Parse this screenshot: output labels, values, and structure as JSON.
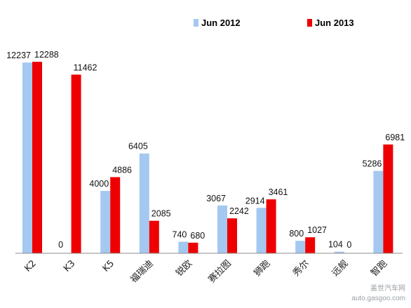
{
  "chart_data": {
    "type": "bar",
    "title": "",
    "xlabel": "",
    "ylabel": "",
    "ylim": [
      0,
      14000
    ],
    "grid": false,
    "legend_position": "top",
    "categories": [
      "K2",
      "K3",
      "K5",
      "福瑞迪",
      "锐欧",
      "赛拉图",
      "狮跑",
      "秀尔",
      "远舰",
      "智跑"
    ],
    "series": [
      {
        "name": "Jun  2012",
        "color": "#a4c8f0",
        "values": [
          12237,
          0,
          4000,
          6405,
          740,
          3067,
          2914,
          800,
          104,
          5286
        ]
      },
      {
        "name": "Jun  2013",
        "color": "#ee0000",
        "values": [
          12288,
          11462,
          4886,
          2085,
          680,
          2242,
          3461,
          1027,
          0,
          6981
        ]
      }
    ]
  },
  "watermark": {
    "brand": "盖世汽车网",
    "url": "auto.gasgoo.com"
  }
}
